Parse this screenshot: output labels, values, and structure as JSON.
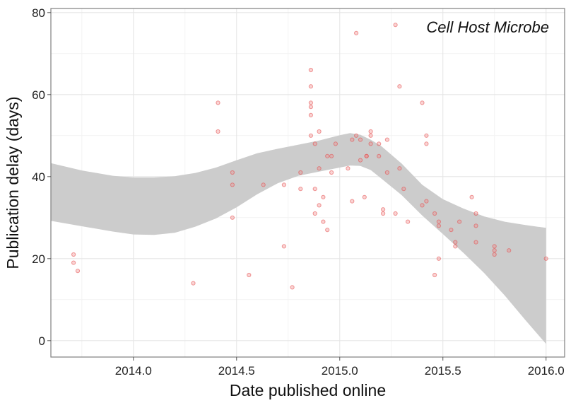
{
  "chart_data": {
    "type": "scatter",
    "xlabel": "Date published online",
    "ylabel": "Publication delay (days)",
    "annotation": "Cell Host Microbe",
    "xlim": [
      2013.6,
      2016.09
    ],
    "ylim": [
      -4,
      81
    ],
    "xticks": [
      2014.0,
      2014.5,
      2015.0,
      2015.5,
      2016.0
    ],
    "xtick_labels": [
      "2014.0",
      "2014.5",
      "2015.0",
      "2015.5",
      "2016.0"
    ],
    "yticks": [
      0,
      20,
      40,
      60,
      80
    ],
    "ytick_labels": [
      "0",
      "20",
      "40",
      "60",
      "80"
    ],
    "grid": true,
    "point_color": "#f08080",
    "band_color": "#cccccc",
    "points": [
      [
        2013.71,
        21
      ],
      [
        2013.71,
        19
      ],
      [
        2013.73,
        17
      ],
      [
        2014.29,
        14
      ],
      [
        2014.41,
        58
      ],
      [
        2014.41,
        51
      ],
      [
        2014.48,
        41
      ],
      [
        2014.48,
        38
      ],
      [
        2014.48,
        30
      ],
      [
        2014.56,
        16
      ],
      [
        2014.63,
        38
      ],
      [
        2014.73,
        38
      ],
      [
        2014.73,
        23
      ],
      [
        2014.77,
        13
      ],
      [
        2014.81,
        41
      ],
      [
        2014.81,
        37
      ],
      [
        2014.86,
        66
      ],
      [
        2014.86,
        62
      ],
      [
        2014.86,
        58
      ],
      [
        2014.86,
        57
      ],
      [
        2014.86,
        55
      ],
      [
        2014.86,
        50
      ],
      [
        2014.88,
        48
      ],
      [
        2014.88,
        37
      ],
      [
        2014.88,
        31
      ],
      [
        2014.9,
        51
      ],
      [
        2014.9,
        42
      ],
      [
        2014.9,
        33
      ],
      [
        2014.92,
        35
      ],
      [
        2014.92,
        29
      ],
      [
        2014.94,
        27
      ],
      [
        2014.94,
        45
      ],
      [
        2014.96,
        45
      ],
      [
        2014.96,
        41
      ],
      [
        2014.98,
        48
      ],
      [
        2015.04,
        42
      ],
      [
        2015.06,
        34
      ],
      [
        2015.06,
        49
      ],
      [
        2015.08,
        75
      ],
      [
        2015.08,
        50
      ],
      [
        2015.1,
        49
      ],
      [
        2015.1,
        44
      ],
      [
        2015.12,
        35
      ],
      [
        2015.13,
        45
      ],
      [
        2015.13,
        45
      ],
      [
        2015.15,
        51
      ],
      [
        2015.15,
        50
      ],
      [
        2015.15,
        48
      ],
      [
        2015.19,
        48
      ],
      [
        2015.19,
        45
      ],
      [
        2015.21,
        32
      ],
      [
        2015.21,
        31
      ],
      [
        2015.23,
        49
      ],
      [
        2015.23,
        41
      ],
      [
        2015.27,
        77
      ],
      [
        2015.27,
        31
      ],
      [
        2015.29,
        62
      ],
      [
        2015.29,
        42
      ],
      [
        2015.31,
        37
      ],
      [
        2015.33,
        29
      ],
      [
        2015.4,
        58
      ],
      [
        2015.4,
        33
      ],
      [
        2015.42,
        50
      ],
      [
        2015.42,
        48
      ],
      [
        2015.42,
        34
      ],
      [
        2015.46,
        31
      ],
      [
        2015.46,
        16
      ],
      [
        2015.48,
        29
      ],
      [
        2015.48,
        28
      ],
      [
        2015.48,
        20
      ],
      [
        2015.54,
        27
      ],
      [
        2015.56,
        24
      ],
      [
        2015.56,
        23
      ],
      [
        2015.58,
        29
      ],
      [
        2015.64,
        35
      ],
      [
        2015.66,
        31
      ],
      [
        2015.66,
        28
      ],
      [
        2015.66,
        24
      ],
      [
        2015.75,
        23
      ],
      [
        2015.75,
        22
      ],
      [
        2015.75,
        21
      ],
      [
        2015.82,
        22
      ],
      [
        2016.0,
        20
      ]
    ],
    "confidence_band": {
      "x": [
        2013.6,
        2013.75,
        2013.9,
        2014.0,
        2014.1,
        2014.2,
        2014.3,
        2014.4,
        2014.5,
        2014.6,
        2014.7,
        2014.8,
        2014.9,
        2015.0,
        2015.05,
        2015.1,
        2015.15,
        2015.2,
        2015.3,
        2015.4,
        2015.5,
        2015.6,
        2015.7,
        2015.8,
        2015.9,
        2016.0
      ],
      "upper": [
        43.3,
        41.5,
        40.2,
        39.8,
        39.8,
        40.1,
        40.9,
        42.2,
        44.0,
        45.7,
        46.8,
        47.8,
        48.8,
        50.1,
        50.6,
        50.2,
        49.0,
        47.5,
        43.2,
        38.0,
        34.5,
        32.2,
        30.3,
        29.0,
        28.2,
        27.5
      ],
      "lower": [
        29.2,
        27.9,
        26.6,
        25.9,
        25.8,
        26.3,
        27.8,
        29.8,
        32.5,
        35.7,
        38.4,
        40.2,
        41.2,
        42.2,
        42.7,
        42.6,
        41.6,
        39.6,
        35.5,
        30.5,
        26.0,
        21.4,
        16.5,
        11.0,
        5.0,
        -0.8
      ]
    }
  }
}
